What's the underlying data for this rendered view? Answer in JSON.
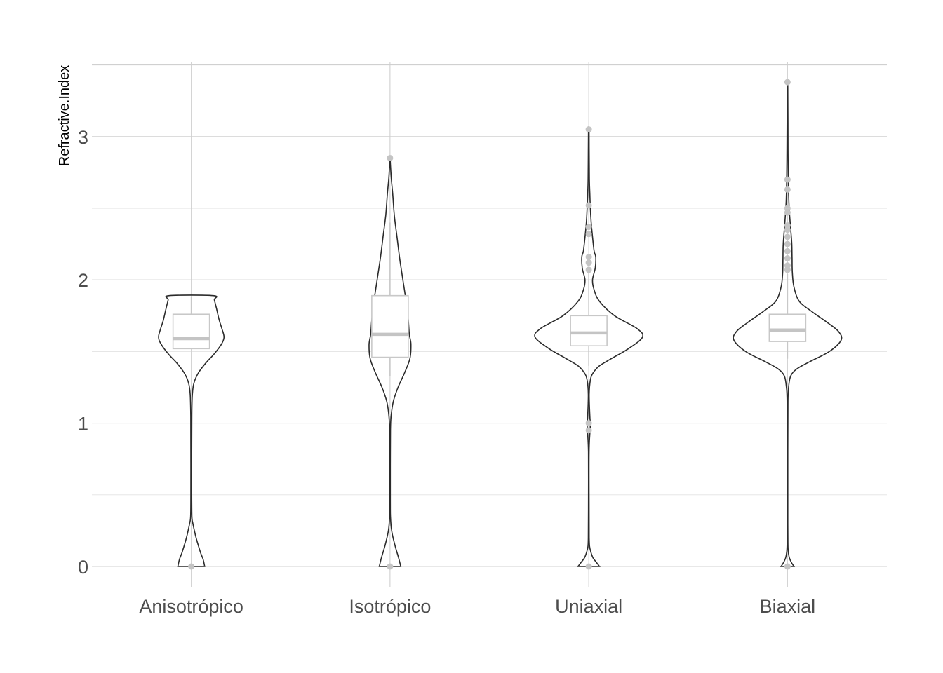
{
  "chart_data": {
    "type": "violin",
    "title": "",
    "xlabel": "",
    "ylabel": "Refractive.Index",
    "ylim": [
      -0.14,
      3.56
    ],
    "yticks": [
      0,
      1,
      2,
      3
    ],
    "grid": true,
    "legend": "none",
    "categories": [
      "Anisotrópico",
      "Isotrópico",
      "Uniaxial",
      "Biaxial"
    ],
    "colors": {
      "violin_outline": "#2b2b2b",
      "box": "#c8c8c8",
      "outlier": "#c4c4c4",
      "grid": "#d0d0d0",
      "tick_text": "#4d4d4d"
    },
    "groups": [
      {
        "name": "Anisotrópico",
        "box": {
          "q1": 1.52,
          "median": 1.59,
          "q3": 1.76,
          "whisker_low": 1.52,
          "whisker_high": 1.88
        },
        "outliers": [
          0.0
        ],
        "violin": {
          "y": [
            0.0,
            0.05,
            0.1,
            0.2,
            0.3,
            0.35,
            0.5,
            0.8,
            1.05,
            1.2,
            1.28,
            1.35,
            1.42,
            1.48,
            1.55,
            1.6,
            1.66,
            1.72,
            1.8,
            1.86,
            1.89
          ],
          "width": [
            0.25,
            0.22,
            0.17,
            0.09,
            0.03,
            0.012,
            0.008,
            0.008,
            0.01,
            0.02,
            0.05,
            0.13,
            0.27,
            0.42,
            0.56,
            0.61,
            0.57,
            0.52,
            0.47,
            0.43,
            0.41
          ]
        }
      },
      {
        "name": "Isotrópico",
        "box": {
          "q1": 1.46,
          "median": 1.62,
          "q3": 1.89,
          "whisker_low": 1.33,
          "whisker_high": 2.4
        },
        "outliers": [
          0.0,
          2.85
        ],
        "violin": {
          "y": [
            0.0,
            0.06,
            0.15,
            0.25,
            0.35,
            0.45,
            0.7,
            0.95,
            1.05,
            1.15,
            1.25,
            1.35,
            1.45,
            1.55,
            1.62,
            1.72,
            1.85,
            2.0,
            2.15,
            2.3,
            2.45,
            2.6,
            2.7,
            2.8,
            2.85
          ],
          "width": [
            0.2,
            0.16,
            0.09,
            0.03,
            0.008,
            0.006,
            0.006,
            0.008,
            0.02,
            0.06,
            0.15,
            0.27,
            0.37,
            0.39,
            0.36,
            0.34,
            0.3,
            0.24,
            0.18,
            0.13,
            0.08,
            0.05,
            0.025,
            0.008,
            0.003
          ]
        }
      },
      {
        "name": "Uniaxial",
        "box": {
          "q1": 1.54,
          "median": 1.63,
          "q3": 1.75,
          "whisker_low": 1.4,
          "whisker_high": 2.05
        },
        "outliers": [
          0.0,
          0.95,
          1.0,
          2.07,
          2.12,
          2.16,
          2.32,
          2.37,
          2.52,
          3.05
        ],
        "violin": {
          "y": [
            0.0,
            0.03,
            0.06,
            0.1,
            0.14,
            0.2,
            0.4,
            0.8,
            0.95,
            1.0,
            1.05,
            1.2,
            1.3,
            1.35,
            1.4,
            1.45,
            1.52,
            1.6,
            1.66,
            1.75,
            1.85,
            1.93,
            2.0,
            2.08,
            2.16,
            2.2,
            2.3,
            2.4,
            2.5,
            2.6,
            2.7,
            2.9,
            3.05
          ],
          "width": [
            0.2,
            0.14,
            0.08,
            0.04,
            0.015,
            0.008,
            0.006,
            0.006,
            0.025,
            0.03,
            0.02,
            0.008,
            0.03,
            0.08,
            0.2,
            0.42,
            0.74,
            1.0,
            0.9,
            0.48,
            0.2,
            0.1,
            0.07,
            0.12,
            0.13,
            0.1,
            0.07,
            0.045,
            0.03,
            0.02,
            0.012,
            0.008,
            0.005
          ]
        }
      },
      {
        "name": "Biaxial",
        "box": {
          "q1": 1.57,
          "median": 1.65,
          "q3": 1.76,
          "whisker_low": 1.45,
          "whisker_high": 2.04
        },
        "outliers": [
          0.0,
          2.07,
          2.1,
          2.15,
          2.2,
          2.25,
          2.3,
          2.35,
          2.38,
          2.47,
          2.5,
          2.63,
          2.7,
          3.38
        ],
        "violin": {
          "y": [
            0.0,
            0.03,
            0.06,
            0.1,
            0.15,
            0.3,
            0.8,
            1.15,
            1.25,
            1.33,
            1.38,
            1.43,
            1.5,
            1.58,
            1.64,
            1.7,
            1.78,
            1.85,
            1.95,
            2.05,
            2.15,
            2.25,
            2.35,
            2.45,
            2.55,
            2.7,
            2.9,
            3.1,
            3.3,
            3.38
          ],
          "width": [
            0.12,
            0.07,
            0.035,
            0.015,
            0.008,
            0.006,
            0.006,
            0.008,
            0.02,
            0.06,
            0.18,
            0.42,
            0.78,
            1.0,
            0.95,
            0.75,
            0.45,
            0.22,
            0.12,
            0.09,
            0.085,
            0.08,
            0.06,
            0.04,
            0.025,
            0.015,
            0.01,
            0.008,
            0.006,
            0.004
          ]
        }
      }
    ]
  }
}
